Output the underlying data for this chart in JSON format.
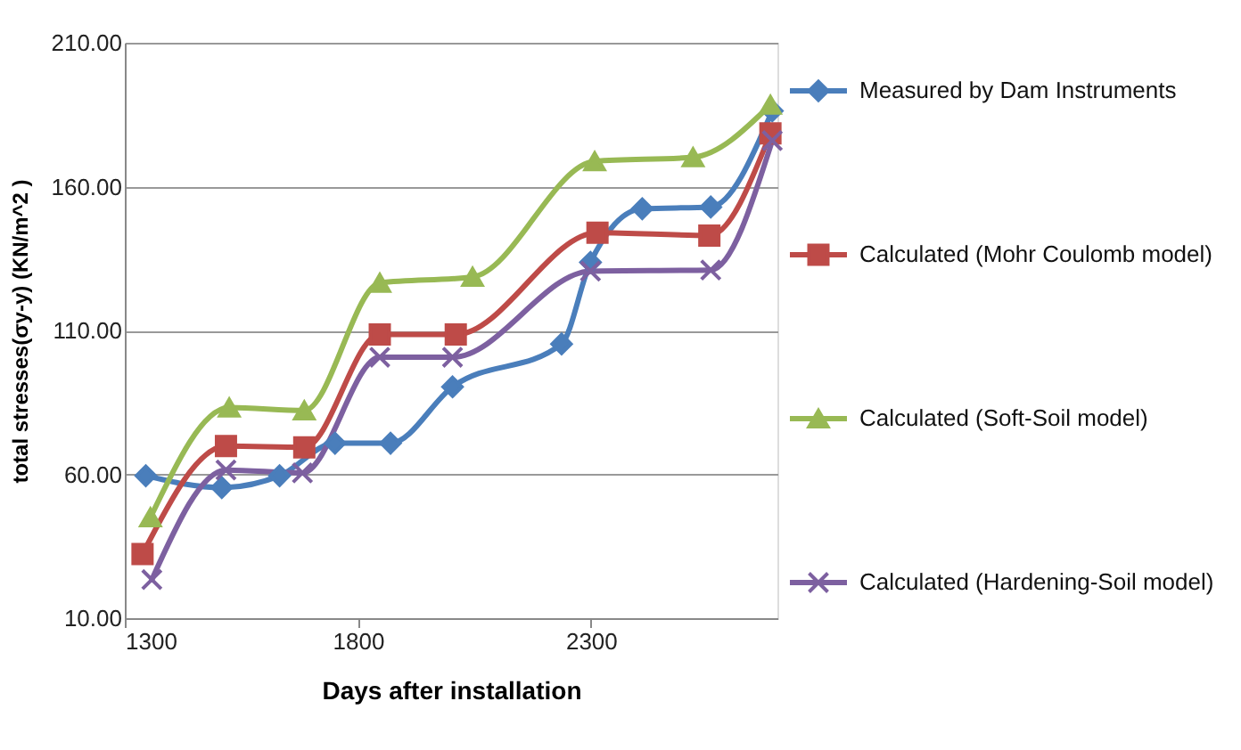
{
  "chart_data": {
    "type": "line",
    "xlabel": "Days after installation",
    "ylabel": "total stresses(σy-y) (KN/m^2 )",
    "xlim": [
      1300,
      2700
    ],
    "xticks": [
      1300,
      1800,
      2300
    ],
    "ylim": [
      10,
      210
    ],
    "yticks": [
      {
        "value": 10,
        "label": "10.00"
      },
      {
        "value": 60,
        "label": "60.00"
      },
      {
        "value": 110,
        "label": "110.00"
      },
      {
        "value": 160,
        "label": "160.00"
      },
      {
        "value": 210,
        "label": "210.00"
      }
    ],
    "grid": "y",
    "legend": "right",
    "line_style": "solid",
    "series": [
      {
        "name": "Measured by Dam Instruments",
        "color": "#4a7ebb",
        "marker": "diamond",
        "x": [
          1345,
          1508,
          1632,
          1751,
          1870,
          2003,
          2237,
          2299,
          2410,
          2557,
          2689
        ],
        "values": [
          59.5,
          55.4,
          59.5,
          70.8,
          70.8,
          90.4,
          105.3,
          133.7,
          152.3,
          152.9,
          186.3
        ]
      },
      {
        "name": "Calculated (Mohr Coulomb model)",
        "color": "#be4b48",
        "marker": "square",
        "x": [
          1338,
          1517,
          1685,
          1847,
          2010,
          2314,
          2554,
          2685
        ],
        "values": [
          32.3,
          69.8,
          69.4,
          108.6,
          108.6,
          144,
          143,
          178.5
        ]
      },
      {
        "name": "Calculated (Soft-Soil model)",
        "color": "#98b954",
        "marker": "triangle",
        "x": [
          1355,
          1524,
          1685,
          1847,
          2046,
          2308,
          2519,
          2685
        ],
        "values": [
          45,
          83.2,
          82.2,
          126.5,
          128.6,
          168.8,
          170.2,
          188.4
        ]
      },
      {
        "name": "Calculated (Hardening-Soil model)",
        "color": "#7d60a0",
        "marker": "cross",
        "x": [
          1358,
          1517,
          1681,
          1847,
          2003,
          2299,
          2557,
          2689
        ],
        "values": [
          23.4,
          61.5,
          60.5,
          100.7,
          100.7,
          130.6,
          131,
          176
        ]
      }
    ]
  }
}
